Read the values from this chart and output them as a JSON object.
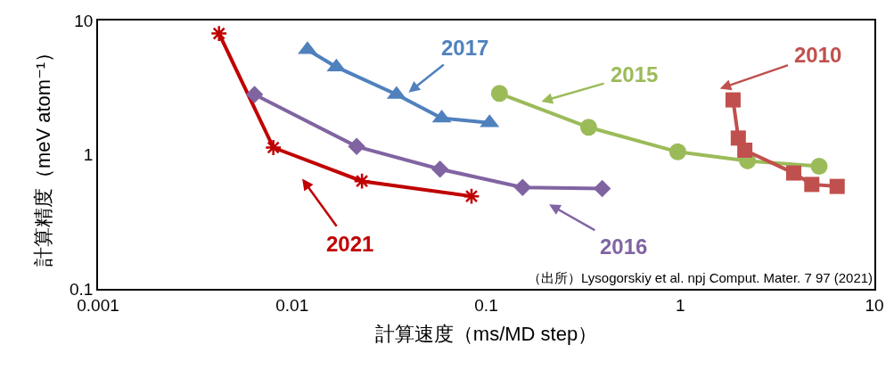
{
  "chart_data": {
    "type": "line",
    "xlabel": "計算速度（ms/MD step）",
    "ylabel": "計算精度（meV atom⁻¹）",
    "log": "xy",
    "xlim": [
      0.001,
      10
    ],
    "xticks": [
      0.001,
      0.01,
      0.1,
      1,
      10
    ],
    "ylim": [
      0.1,
      10
    ],
    "yticks": [
      0.1,
      1,
      10
    ],
    "grid": false,
    "legend": false,
    "series": [
      {
        "name": "2021",
        "color": "#c00000",
        "marker": "cross",
        "x": [
          0.0042,
          0.008,
          0.0229,
          0.084
        ],
        "values": [
          8.0,
          1.13,
          0.635,
          0.49
        ]
      },
      {
        "name": "2016",
        "color": "#8064a2",
        "marker": "diamond",
        "x": [
          0.0064,
          0.0215,
          0.0578,
          0.154,
          0.396
        ],
        "values": [
          2.81,
          1.15,
          0.78,
          0.57,
          0.56
        ]
      },
      {
        "name": "2017",
        "color": "#4f81bd",
        "marker": "triangle",
        "x": [
          0.012,
          0.0169,
          0.0345,
          0.059,
          0.104
        ],
        "values": [
          6.06,
          4.5,
          2.81,
          1.87,
          1.73
        ]
      },
      {
        "name": "2015",
        "color": "#9bbb59",
        "marker": "circle",
        "x": [
          0.117,
          0.337,
          0.97,
          2.22,
          5.19
        ],
        "values": [
          2.86,
          1.6,
          1.05,
          0.9,
          0.82
        ]
      },
      {
        "name": "2010",
        "color": "#c0504d",
        "marker": "square",
        "x": [
          1.87,
          1.99,
          2.15,
          3.84,
          4.76,
          6.43
        ],
        "values": [
          2.56,
          1.33,
          1.08,
          0.73,
          0.6,
          0.58
        ]
      }
    ],
    "annotations": [
      "（出所）Lysogorskiy et al. npj Comput. Mater. 7 97 (2021)"
    ]
  }
}
